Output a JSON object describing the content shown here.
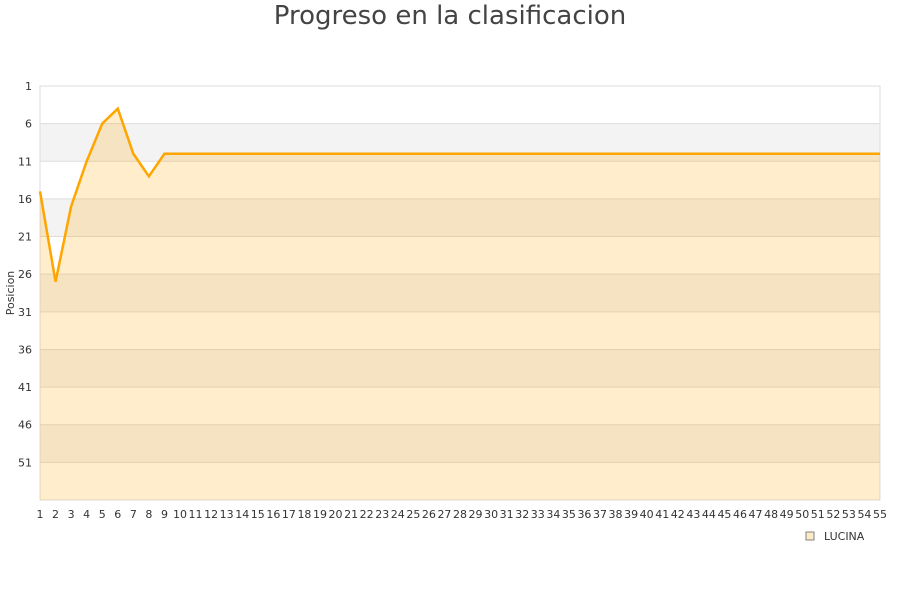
{
  "chart_data": {
    "type": "area",
    "title": "Progreso en la clasificacion",
    "xlabel": "",
    "ylabel": "Posicion",
    "x": [
      1,
      2,
      3,
      4,
      5,
      6,
      7,
      8,
      9,
      10,
      11,
      12,
      13,
      14,
      15,
      16,
      17,
      18,
      19,
      20,
      21,
      22,
      23,
      24,
      25,
      26,
      27,
      28,
      29,
      30,
      31,
      32,
      33,
      34,
      35,
      36,
      37,
      38,
      39,
      40,
      41,
      42,
      43,
      44,
      45,
      46,
      47,
      48,
      49,
      50,
      51,
      52,
      53,
      54,
      55
    ],
    "series": [
      {
        "name": "LUCINA",
        "values": [
          15,
          27,
          17,
          11,
          6,
          4,
          10,
          13,
          10,
          10,
          10,
          10,
          10,
          10,
          10,
          10,
          10,
          10,
          10,
          10,
          10,
          10,
          10,
          10,
          10,
          10,
          10,
          10,
          10,
          10,
          10,
          10,
          10,
          10,
          10,
          10,
          10,
          10,
          10,
          10,
          10,
          10,
          10,
          10,
          10,
          10,
          10,
          10,
          10,
          10,
          10,
          10,
          10,
          10,
          10
        ]
      }
    ],
    "xlim": [
      1,
      55
    ],
    "ylim": [
      1,
      56
    ],
    "y_inverted": true,
    "yticks": [
      1,
      6,
      11,
      16,
      21,
      26,
      31,
      36,
      41,
      46,
      51
    ],
    "grid": true,
    "legend_position": "bottom-right",
    "colors": {
      "line": "#ffa500",
      "fill": "#ffa500",
      "band": "#f3f3f3"
    }
  }
}
